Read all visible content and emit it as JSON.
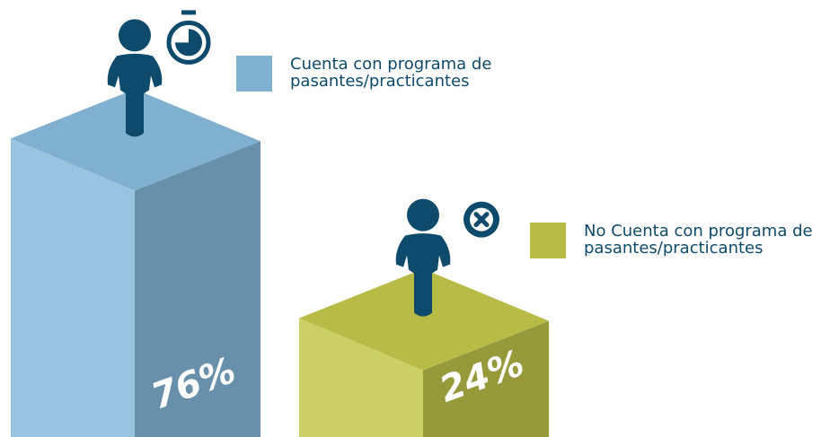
{
  "chart_data": {
    "type": "bar",
    "categories": [
      "Cuenta con programa de pasantes/practicantes",
      "No Cuenta con programa de pasantes/practicantes"
    ],
    "values": [
      76,
      24
    ],
    "value_labels": [
      "76%",
      "24%"
    ],
    "colors": [
      "#86b9db",
      "#c2c64a"
    ]
  }
}
